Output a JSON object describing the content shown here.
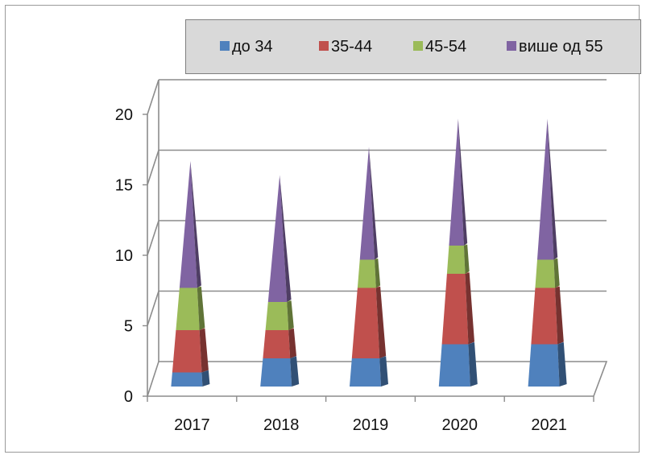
{
  "chart_data": {
    "type": "bar",
    "style": "stacked-3d-cone",
    "categories": [
      "2017",
      "2018",
      "2019",
      "2020",
      "2021"
    ],
    "series": [
      {
        "name": "до 34",
        "color": "#4f81bd",
        "values": [
          1,
          2,
          2,
          3,
          3
        ]
      },
      {
        "name": "35-44",
        "color": "#c0504d",
        "values": [
          3,
          2,
          5,
          5,
          4
        ]
      },
      {
        "name": "45-54",
        "color": "#9bbb59",
        "values": [
          3,
          2,
          2,
          2,
          2
        ]
      },
      {
        "name": "више од 55",
        "color": "#8064a2",
        "values": [
          9,
          9,
          8,
          9,
          10
        ]
      }
    ],
    "y_ticks": [
      "0",
      "5",
      "10",
      "15",
      "20"
    ],
    "ylim": [
      0,
      20
    ],
    "grid": true,
    "legend_position": "top"
  }
}
